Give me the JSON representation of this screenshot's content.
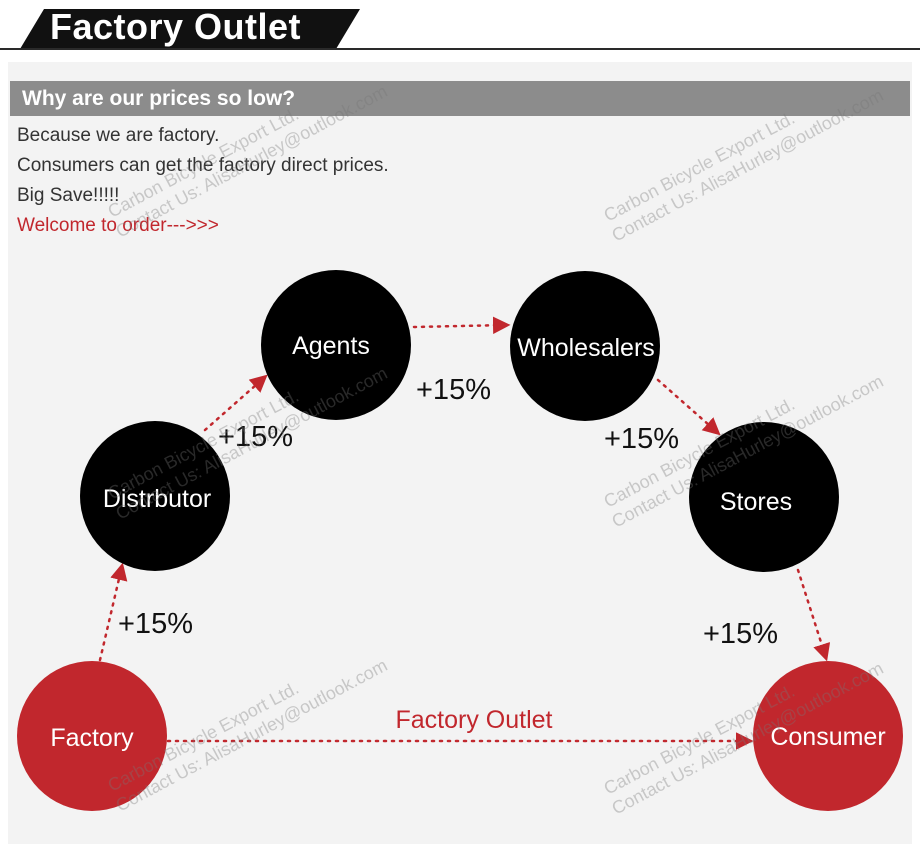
{
  "banner": {
    "title": "Factory Outlet"
  },
  "section": {
    "heading": "Why are our prices so low?",
    "lines": [
      "Because we are factory.",
      "Consumers can get the factory direct prices.",
      "Big Save!!!!!"
    ],
    "cta": "Welcome to order--->>>"
  },
  "diagram": {
    "nodes": {
      "factory": "Factory",
      "distributor": "Distrbutor",
      "agents": "Agents",
      "wholesalers": "Wholesalers",
      "stores": "Stores",
      "consumer": "Consumer"
    },
    "markups": [
      "+15%",
      "+15%",
      "+15%",
      "+15%",
      "+15%"
    ],
    "direct_label": "Factory Outlet"
  },
  "watermark": {
    "line1": "Carbon Bicycle Export Ltd.",
    "line2": "Contact Us: AlisaHurley@outlook.com"
  },
  "colors": {
    "node_dark": "#000000",
    "node_red": "#c1272d",
    "arrow": "#c1272d"
  }
}
